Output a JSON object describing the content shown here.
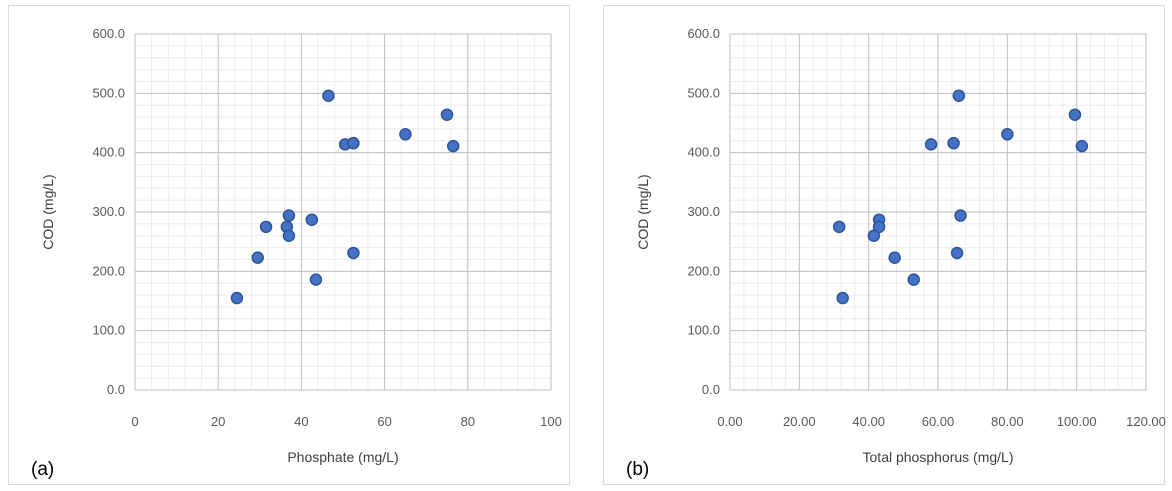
{
  "colors": {
    "marker_fill": "#4472c4",
    "marker_stroke": "#2f5597",
    "grid_major": "#bfbfbf",
    "grid_minor": "#ececec",
    "panel_border": "#d9d9d9"
  },
  "chart_data": [
    {
      "type": "scatter",
      "panel_label": "(a)",
      "title": "",
      "xlabel": "Phosphate (mg/L)",
      "ylabel": "COD (mg/L)",
      "xlim": [
        0,
        100
      ],
      "ylim": [
        0,
        600
      ],
      "x_ticks": [
        "0",
        "20",
        "40",
        "60",
        "80",
        "100"
      ],
      "y_ticks": [
        "0.0",
        "100.0",
        "200.0",
        "300.0",
        "400.0",
        "500.0",
        "600.0"
      ],
      "grid": true,
      "minor_grid": true,
      "legend": "none",
      "points": [
        {
          "x": 24.5,
          "y": 155
        },
        {
          "x": 29.5,
          "y": 223
        },
        {
          "x": 31.5,
          "y": 275
        },
        {
          "x": 36.5,
          "y": 275
        },
        {
          "x": 37.0,
          "y": 294
        },
        {
          "x": 37.0,
          "y": 260
        },
        {
          "x": 42.5,
          "y": 287
        },
        {
          "x": 43.5,
          "y": 186
        },
        {
          "x": 46.5,
          "y": 496
        },
        {
          "x": 50.5,
          "y": 414
        },
        {
          "x": 52.5,
          "y": 416
        },
        {
          "x": 52.5,
          "y": 231
        },
        {
          "x": 65.0,
          "y": 431
        },
        {
          "x": 75.0,
          "y": 464
        },
        {
          "x": 76.5,
          "y": 411
        }
      ]
    },
    {
      "type": "scatter",
      "panel_label": "(b)",
      "title": "",
      "xlabel": "Total phosphorus (mg/L)",
      "ylabel": "COD (mg/L)",
      "xlim": [
        0,
        120
      ],
      "ylim": [
        0,
        600
      ],
      "x_ticks": [
        "0.00",
        "20.00",
        "40.00",
        "60.00",
        "80.00",
        "100.00",
        "120.00"
      ],
      "y_ticks": [
        "0.0",
        "100.0",
        "200.0",
        "300.0",
        "400.0",
        "500.0",
        "600.0"
      ],
      "grid": true,
      "minor_grid": true,
      "legend": "none",
      "points": [
        {
          "x": 31.5,
          "y": 275
        },
        {
          "x": 32.5,
          "y": 155
        },
        {
          "x": 41.5,
          "y": 260
        },
        {
          "x": 43.0,
          "y": 287
        },
        {
          "x": 43.0,
          "y": 275
        },
        {
          "x": 47.5,
          "y": 223
        },
        {
          "x": 53.0,
          "y": 186
        },
        {
          "x": 58.0,
          "y": 414
        },
        {
          "x": 64.5,
          "y": 416
        },
        {
          "x": 65.5,
          "y": 231
        },
        {
          "x": 66.0,
          "y": 496
        },
        {
          "x": 66.5,
          "y": 294
        },
        {
          "x": 80.0,
          "y": 431
        },
        {
          "x": 99.5,
          "y": 464
        },
        {
          "x": 101.5,
          "y": 411
        }
      ]
    }
  ]
}
